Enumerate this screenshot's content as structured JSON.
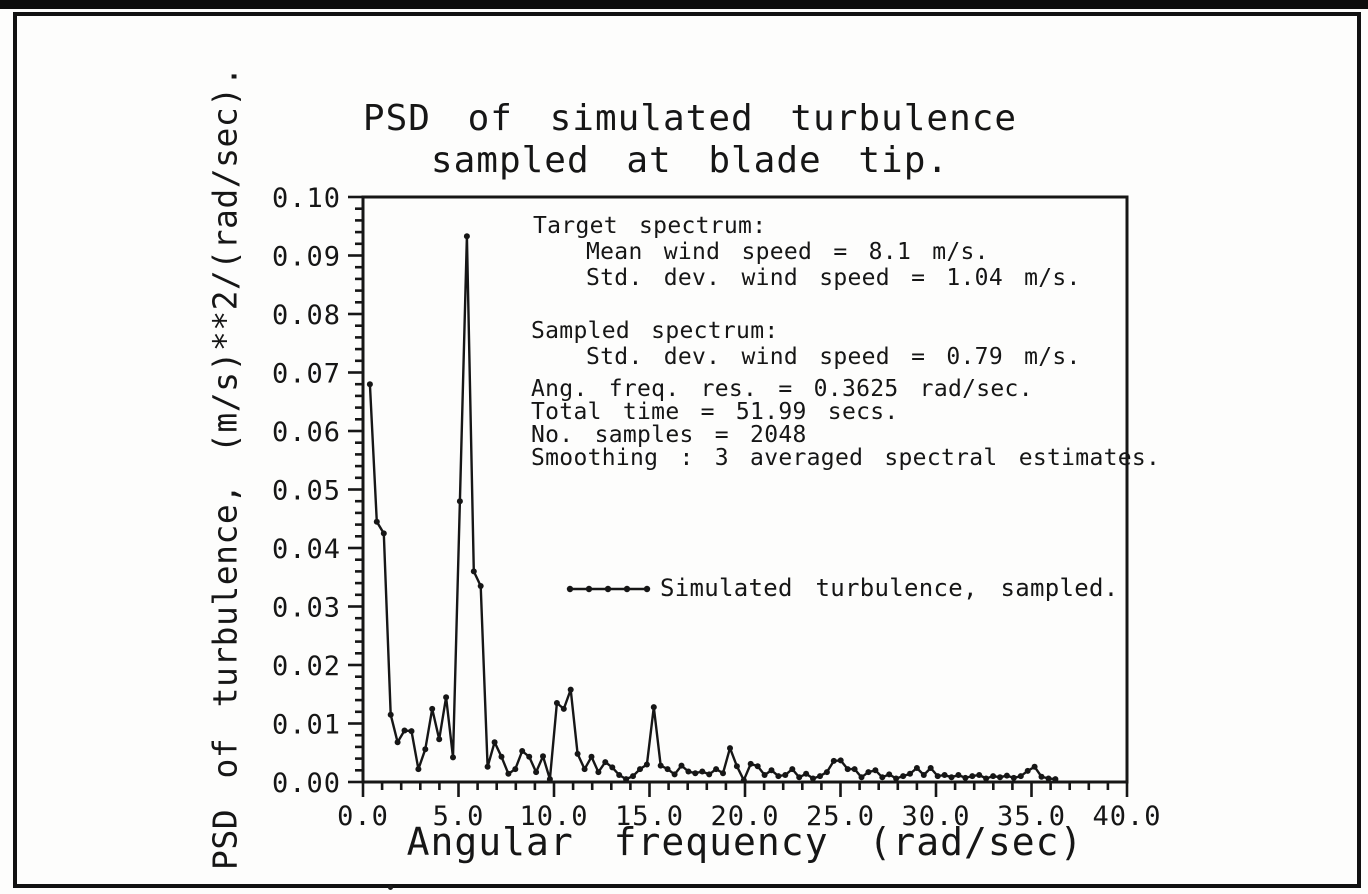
{
  "figure": {
    "title_line1": "PSD of simulated turbulence",
    "title_line2": "sampled at blade tip.",
    "y_axis_label": "PSD of turbulence, (m/s)**2/(rad/sec).",
    "x_axis_label": "Angular frequency (rad/sec)"
  },
  "annotations": {
    "target_header": "Target spectrum:",
    "target_mean": "Mean wind speed = 8.1 m/s.",
    "target_std": "Std. dev. wind speed = 1.04 m/s.",
    "sampled_header": "Sampled spectrum:",
    "sampled_std": "Std. dev. wind speed = 0.79 m/s.",
    "freq_res": "Ang. freq. res. = 0.3625 rad/sec.",
    "total_time": "Total time = 51.99 secs.",
    "num_samples": "No. samples = 2048",
    "smoothing": "Smoothing : 3 averaged spectral estimates."
  },
  "legend": {
    "label": "Simulated turbulence, sampled."
  },
  "colors": {
    "ink": "#161616",
    "paper": "#fdfdfc"
  },
  "chart_data": {
    "type": "line",
    "title": "PSD of simulated turbulence sampled at blade tip.",
    "xlabel": "Angular frequency (rad/sec)",
    "ylabel": "PSD of turbulence, (m/s)**2/(rad/sec).",
    "xlim": [
      0,
      40
    ],
    "ylim": [
      0,
      0.1
    ],
    "x_major_tick_labels": [
      "0.0",
      "5.0",
      "10.0",
      "15.0",
      "20.0",
      "25.0",
      "30.0",
      "35.0",
      "40.0"
    ],
    "y_major_tick_labels": [
      "0.00",
      "0.01",
      "0.02",
      "0.03",
      "0.04",
      "0.05",
      "0.06",
      "0.07",
      "0.08",
      "0.09",
      "0.10"
    ],
    "x_minor_step": 1.0,
    "y_minor_step": 0.002,
    "grid": false,
    "legend_position": "center-right of plot",
    "marker": "dot",
    "line_color": "#161616",
    "series": [
      {
        "name": "Simulated turbulence, sampled.",
        "x": [
          0.3625,
          0.725,
          1.0875,
          1.45,
          1.8125,
          2.175,
          2.5375,
          2.9,
          3.2625,
          3.625,
          3.9875,
          4.35,
          4.7125,
          5.075,
          5.4375,
          5.8,
          6.1625,
          6.525,
          6.8875,
          7.25,
          7.6125,
          7.975,
          8.3375,
          8.7,
          9.0625,
          9.425,
          9.7875,
          10.15,
          10.5125,
          10.875,
          11.2375,
          11.6,
          11.9625,
          12.325,
          12.6875,
          13.05,
          13.4125,
          13.775,
          14.1375,
          14.5,
          14.8625,
          15.225,
          15.5875,
          15.95,
          16.3125,
          16.675,
          17.0375,
          17.4,
          17.7625,
          18.125,
          18.4875,
          18.85,
          19.2125,
          19.575,
          19.9375,
          20.3,
          20.6625,
          21.025,
          21.3875,
          21.75,
          22.1125,
          22.475,
          22.8375,
          23.2,
          23.5625,
          23.925,
          24.2875,
          24.65,
          25.0125,
          25.375,
          25.7375,
          26.1,
          26.4625,
          26.825,
          27.1875,
          27.55,
          27.9125,
          28.275,
          28.6375,
          29.0,
          29.3625,
          29.725,
          30.0875,
          30.45,
          30.8125,
          31.175,
          31.5375,
          31.9,
          32.2625,
          32.625,
          32.9875,
          33.35,
          33.7125,
          34.075,
          34.4375,
          34.8,
          35.1625,
          35.525,
          35.8875,
          36.25
        ],
        "y": [
          0.068,
          0.0445,
          0.0425,
          0.0115,
          0.0068,
          0.0088,
          0.0087,
          0.0022,
          0.0056,
          0.0125,
          0.0073,
          0.0145,
          0.0042,
          0.048,
          0.0933,
          0.036,
          0.0335,
          0.0026,
          0.0068,
          0.0043,
          0.0014,
          0.0022,
          0.0053,
          0.0043,
          0.0017,
          0.0044,
          0.0005,
          0.0135,
          0.0125,
          0.0158,
          0.0048,
          0.0022,
          0.0043,
          0.0017,
          0.0034,
          0.0025,
          0.0012,
          0.0005,
          0.001,
          0.0022,
          0.003,
          0.0128,
          0.0028,
          0.0022,
          0.0013,
          0.0028,
          0.0018,
          0.0015,
          0.0018,
          0.0013,
          0.0022,
          0.0015,
          0.0058,
          0.0027,
          0.0003,
          0.0031,
          0.0027,
          0.0012,
          0.002,
          0.001,
          0.0012,
          0.0022,
          0.0008,
          0.0014,
          0.0006,
          0.001,
          0.0017,
          0.0036,
          0.0037,
          0.0022,
          0.0022,
          0.0008,
          0.0017,
          0.002,
          0.0008,
          0.0013,
          0.0006,
          0.001,
          0.0014,
          0.0024,
          0.0012,
          0.0024,
          0.001,
          0.0012,
          0.0008,
          0.0012,
          0.0007,
          0.001,
          0.0012,
          0.0006,
          0.001,
          0.0008,
          0.0011,
          0.0007,
          0.001,
          0.0019,
          0.0026,
          0.0009,
          0.0006,
          0.0005
        ]
      }
    ]
  }
}
